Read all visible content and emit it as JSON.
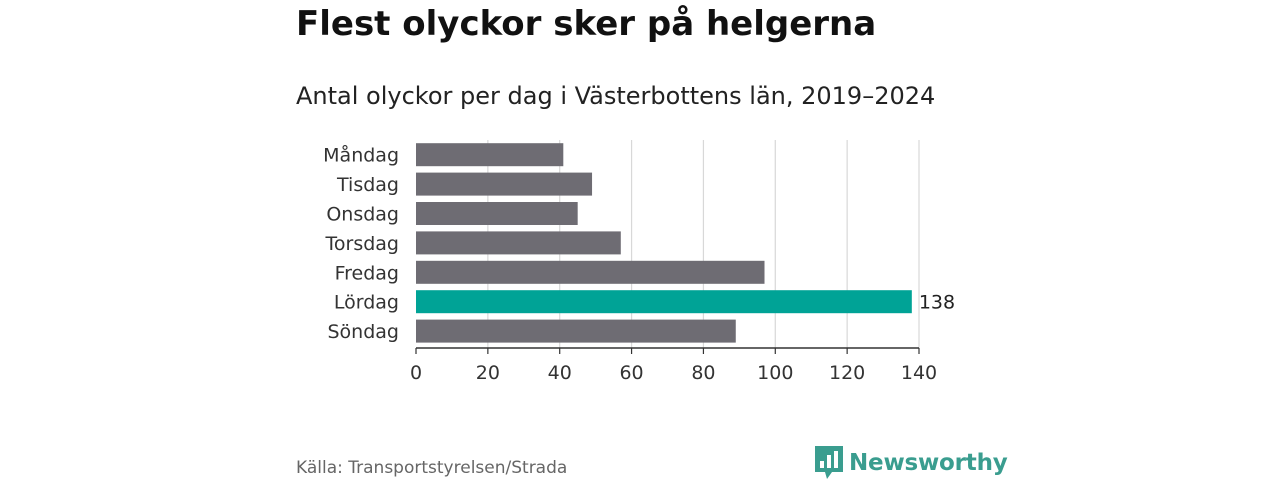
{
  "title": "Flest olyckor sker på helgerna",
  "subtitle": "Antal olyckor per dag i Västerbottens län, 2019–2024",
  "source": "Källa: Transportstyrelsen/Strada",
  "brand": "Newsworthy",
  "colors": {
    "bar": "#6e6c73",
    "highlight": "#00a396",
    "grid": "#d8d8d8",
    "brand": "#3a9d8f"
  },
  "chart_data": {
    "type": "bar",
    "orientation": "horizontal",
    "categories": [
      "Måndag",
      "Tisdag",
      "Onsdag",
      "Torsdag",
      "Fredag",
      "Lördag",
      "Söndag"
    ],
    "values": [
      41,
      49,
      45,
      57,
      97,
      138,
      89
    ],
    "highlight": "Lördag",
    "data_labels": [
      {
        "category": "Lördag",
        "label": "138"
      }
    ],
    "xlim": [
      0,
      140
    ],
    "xticks": [
      "0",
      "20",
      "40",
      "60",
      "80",
      "100",
      "120",
      "140"
    ],
    "grid": true
  }
}
